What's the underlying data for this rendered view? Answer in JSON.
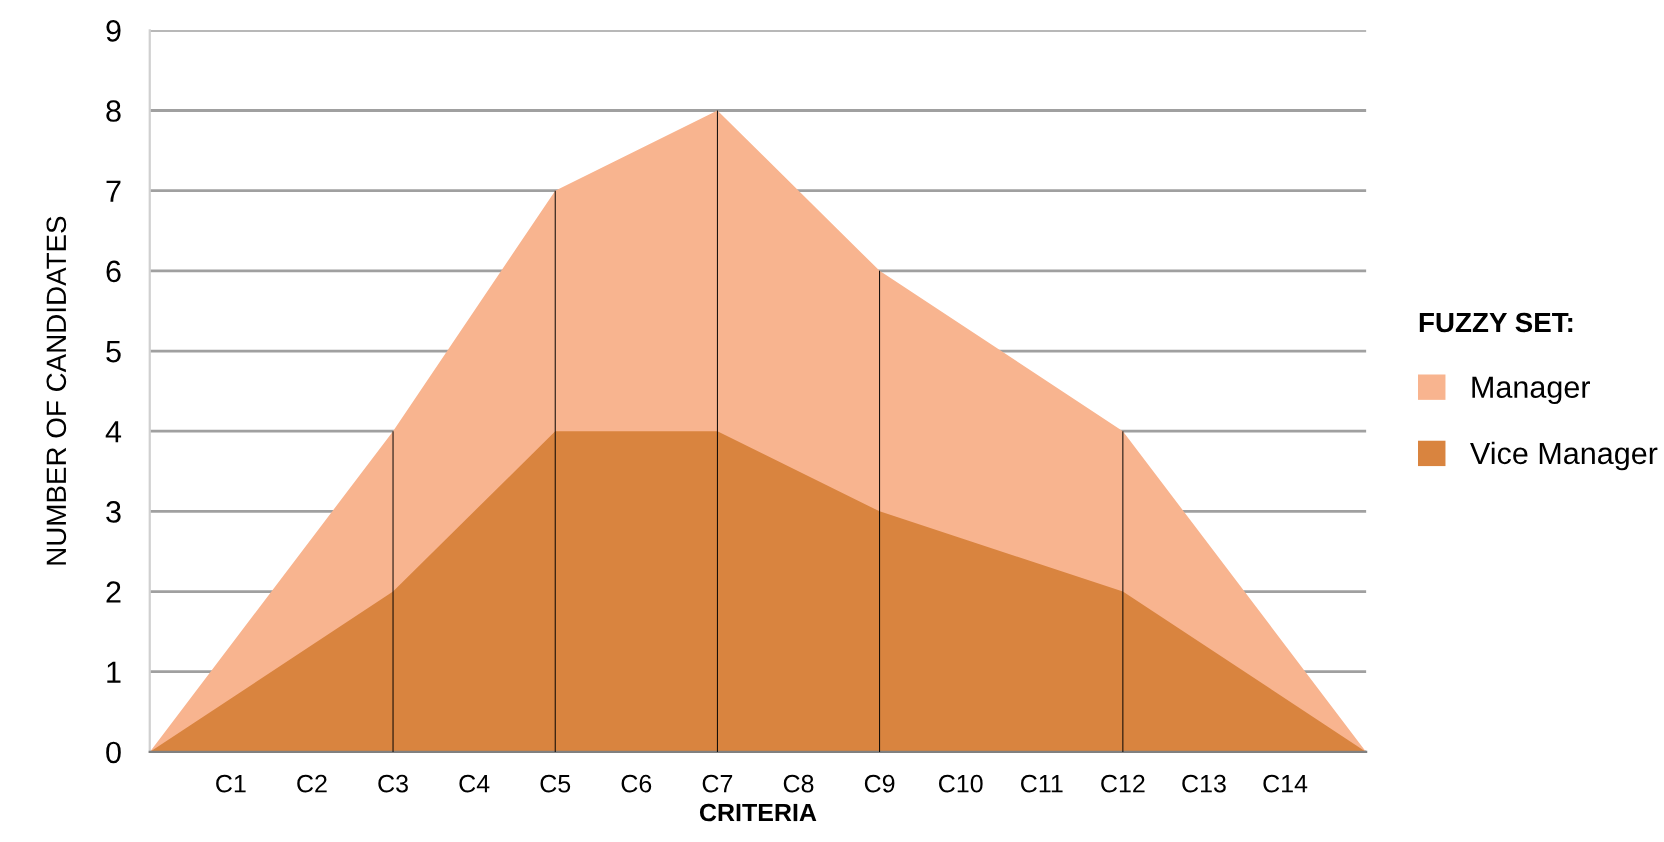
{
  "chart_data": {
    "type": "area",
    "xlabel": "CRITERIA",
    "ylabel": "NUMBER OF CANDIDATES",
    "legend_title": "FUZZY SET:",
    "categories": [
      null,
      "C1",
      "C2",
      "C3",
      "C4",
      "C5",
      "C6",
      "C7",
      "C8",
      "C9",
      "C10",
      "C11",
      "C12",
      "C13",
      "C14",
      null
    ],
    "series": [
      {
        "name": "Manager",
        "color": "#f8b48f",
        "values": [
          0,
          null,
          null,
          4,
          null,
          7,
          null,
          8,
          null,
          6,
          null,
          null,
          4,
          null,
          null,
          0
        ]
      },
      {
        "name": "Vice Manager",
        "color": "#d9843f",
        "values": [
          0,
          null,
          null,
          2,
          null,
          4,
          null,
          4,
          null,
          3,
          null,
          null,
          2,
          null,
          null,
          0
        ]
      },
      {
        "type": "bar",
        "color": "#000000",
        "values": [
          null,
          null,
          null,
          4,
          null,
          7,
          null,
          8,
          null,
          6,
          null,
          null,
          4,
          null,
          null,
          null
        ]
      }
    ],
    "ylim": [
      0,
      9
    ],
    "yticks": [
      0,
      1,
      2,
      3,
      4,
      5,
      6,
      7,
      8,
      9
    ],
    "grid": "y",
    "legend": "right"
  }
}
